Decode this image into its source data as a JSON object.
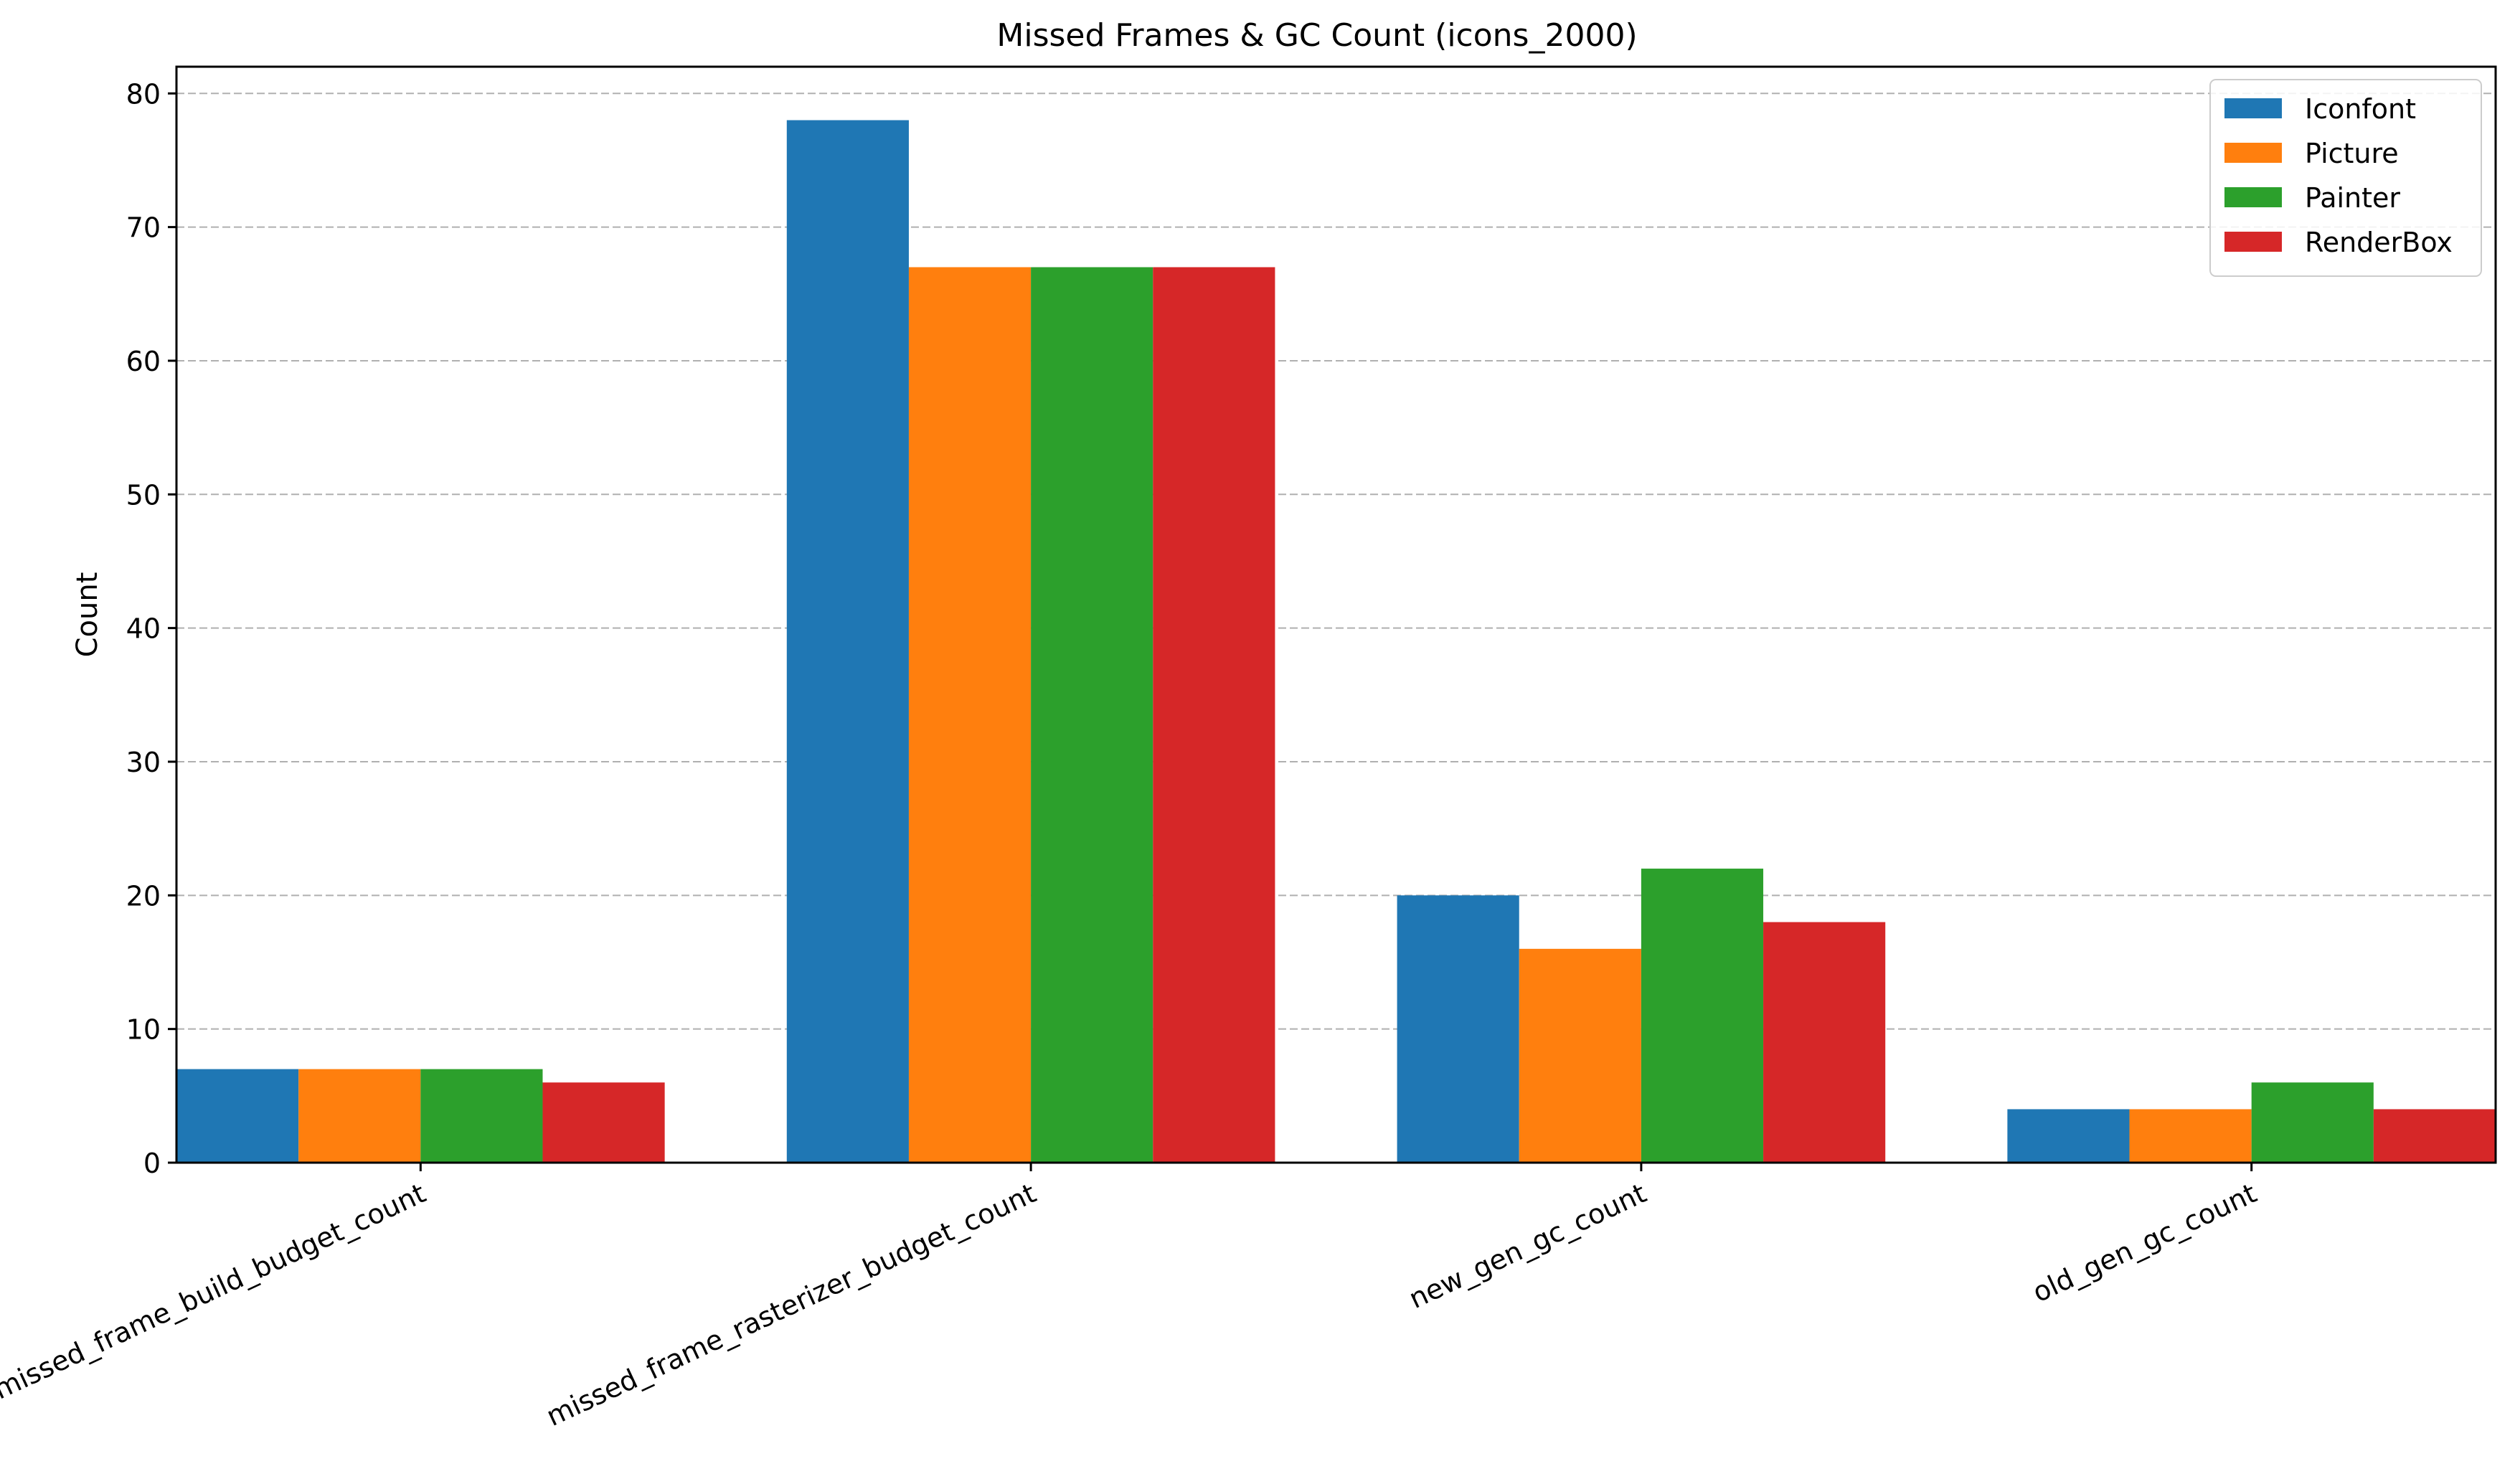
{
  "chart_data": {
    "type": "bar",
    "title": "Missed Frames & GC Count (icons_2000)",
    "xlabel": "",
    "ylabel": "Count",
    "categories": [
      "missed_frame_build_budget_count",
      "missed_frame_rasterizer_budget_count",
      "new_gen_gc_count",
      "old_gen_gc_count"
    ],
    "series": [
      {
        "name": "Iconfont",
        "color": "#1f77b4",
        "values": [
          7,
          78,
          20,
          4
        ]
      },
      {
        "name": "Picture",
        "color": "#ff7f0e",
        "values": [
          7,
          67,
          16,
          4
        ]
      },
      {
        "name": "Painter",
        "color": "#2ca02c",
        "values": [
          7,
          67,
          22,
          6
        ]
      },
      {
        "name": "RenderBox",
        "color": "#d62728",
        "values": [
          6,
          67,
          18,
          4
        ]
      }
    ],
    "ylim": [
      0,
      82
    ],
    "yticks": [
      0,
      10,
      20,
      30,
      40,
      50,
      60,
      70,
      80
    ],
    "grid": "y-axis dashed",
    "legend_position": "top-right",
    "xtick_rotation": "rotated about 25 degrees"
  }
}
